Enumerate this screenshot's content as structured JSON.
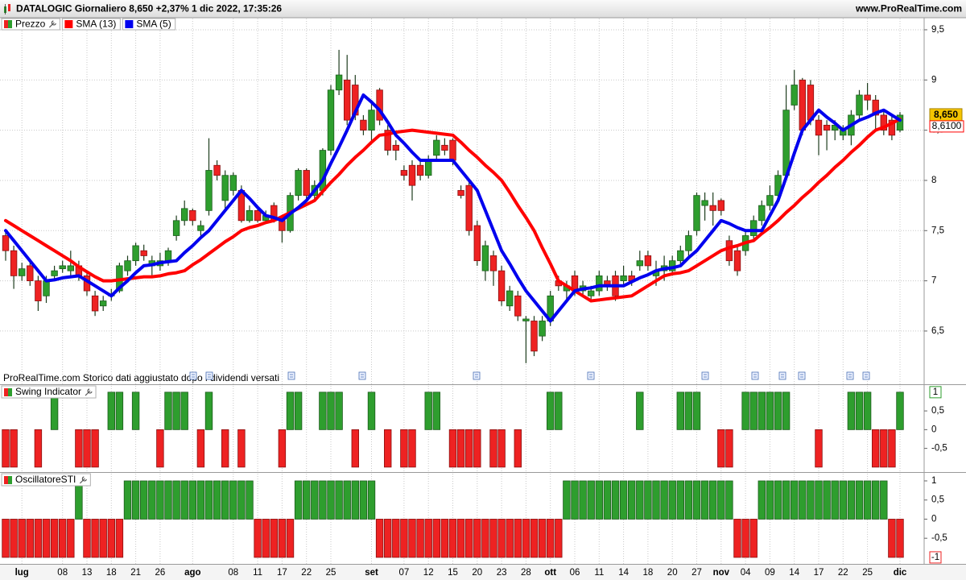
{
  "chart_data": [
    {
      "type": "candlestick",
      "title": "DATALOGIC Giornaliero 8,650 +2,37% 1 dic 2022, 17:35:26",
      "source": "www.ProRealTime.com",
      "note": "ProRealTime.com  Storico dati aggiustato dopo i dividendi versati",
      "categories": [
        null,
        null,
        "lug",
        null,
        null,
        null,
        null,
        "08",
        null,
        null,
        "13",
        null,
        null,
        "18",
        null,
        null,
        "21",
        null,
        null,
        "26",
        null,
        null,
        null,
        "ago",
        null,
        null,
        null,
        null,
        "08",
        null,
        null,
        "11",
        null,
        null,
        "17",
        null,
        null,
        "22",
        null,
        null,
        "25",
        null,
        null,
        null,
        null,
        "set",
        null,
        null,
        null,
        "07",
        null,
        null,
        "12",
        null,
        null,
        "15",
        null,
        null,
        "20",
        null,
        null,
        "23",
        null,
        null,
        "28",
        null,
        null,
        "ott",
        null,
        null,
        "06",
        null,
        null,
        "11",
        null,
        null,
        "14",
        null,
        null,
        "18",
        null,
        null,
        "20",
        null,
        null,
        "27",
        null,
        null,
        "nov",
        null,
        null,
        "04",
        null,
        null,
        "09",
        null,
        null,
        "14",
        null,
        null,
        "17",
        null,
        null,
        "22",
        null,
        null,
        "25",
        null,
        null,
        null,
        "dic"
      ],
      "ylim": [
        5.97,
        9.62
      ],
      "yticks": [
        {
          "value": 6.5,
          "label": "6,5"
        },
        7,
        {
          "value": 7.5,
          "label": "7,5"
        },
        8,
        {
          "value": 8.5,
          "label": "8,5"
        },
        9,
        {
          "value": 9.5,
          "label": "9,5"
        }
      ],
      "grid": true,
      "series": [
        {
          "name": "Prezzo",
          "up_color": "#2e9e2e",
          "down_color": "#ee2222",
          "last_label": "8,650",
          "open": [
            7.45,
            7.3,
            7.05,
            7.15,
            7.0,
            6.85,
            7.05,
            7.12,
            7.1,
            7.15,
            7.05,
            6.85,
            6.75,
            6.85,
            6.9,
            7.1,
            7.2,
            7.3,
            7.15,
            7.15,
            7.2,
            7.45,
            7.6,
            7.7,
            7.5,
            7.7,
            8.15,
            7.8,
            7.9,
            7.9,
            7.6,
            7.7,
            7.6,
            7.75,
            7.6,
            7.5,
            7.85,
            8.1,
            7.85,
            7.9,
            8.3,
            8.9,
            9.0,
            8.95,
            8.6,
            8.5,
            8.9,
            8.5,
            8.35,
            8.1,
            8.15,
            8.15,
            8.05,
            8.25,
            8.35,
            8.4,
            7.9,
            7.95,
            7.55,
            7.1,
            7.25,
            7.1,
            6.75,
            6.85,
            6.6,
            6.6,
            6.45,
            6.6,
            7.0,
            6.9,
            7.05,
            6.9,
            6.85,
            6.9,
            7.0,
            7.05,
            7.0,
            7.05,
            7.15,
            7.25,
            7.05,
            7.1,
            7.1,
            7.2,
            7.3,
            7.5,
            7.75,
            7.75,
            7.8,
            7.4,
            7.3,
            7.3,
            7.45,
            7.6,
            7.75,
            7.85,
            8.05,
            8.75,
            9.0,
            8.95,
            8.6,
            8.55,
            8.5,
            8.45,
            8.45,
            8.65,
            8.85,
            8.8,
            8.65,
            8.6,
            8.5
          ],
          "high": [
            7.5,
            7.35,
            7.18,
            7.2,
            7.05,
            7.05,
            7.15,
            7.2,
            7.3,
            7.2,
            7.1,
            6.9,
            6.85,
            6.92,
            7.18,
            7.25,
            7.38,
            7.36,
            7.25,
            7.28,
            7.33,
            7.65,
            7.8,
            7.72,
            7.6,
            8.42,
            8.2,
            8.1,
            8.08,
            7.95,
            7.75,
            7.72,
            7.7,
            7.78,
            7.65,
            7.88,
            8.12,
            8.12,
            8.0,
            8.32,
            8.95,
            9.3,
            9.25,
            9.05,
            8.65,
            8.8,
            8.92,
            8.55,
            8.4,
            8.15,
            8.2,
            8.2,
            8.25,
            8.45,
            8.42,
            8.42,
            7.95,
            8.0,
            7.6,
            7.4,
            7.3,
            7.15,
            6.95,
            6.9,
            6.65,
            6.65,
            6.65,
            6.9,
            7.05,
            7.0,
            7.1,
            7.0,
            6.95,
            7.1,
            7.05,
            7.1,
            7.15,
            7.1,
            7.3,
            7.3,
            7.2,
            7.25,
            7.25,
            7.35,
            7.5,
            7.88,
            7.88,
            7.88,
            7.82,
            7.45,
            7.35,
            7.5,
            7.65,
            7.8,
            7.95,
            8.1,
            8.95,
            9.1,
            9.02,
            9.0,
            8.65,
            8.6,
            8.6,
            8.55,
            8.7,
            8.9,
            8.97,
            8.85,
            8.7,
            8.65,
            8.68
          ],
          "low": [
            7.2,
            6.92,
            7.0,
            6.95,
            6.7,
            6.78,
            7.0,
            7.08,
            7.05,
            7.0,
            6.85,
            6.65,
            6.7,
            6.8,
            6.88,
            7.05,
            7.15,
            7.2,
            7.05,
            7.1,
            7.15,
            7.4,
            7.55,
            7.55,
            7.45,
            7.65,
            8.0,
            7.7,
            7.85,
            7.58,
            7.58,
            7.58,
            7.57,
            7.58,
            7.38,
            7.48,
            7.8,
            7.82,
            7.8,
            7.85,
            8.25,
            8.85,
            8.55,
            8.6,
            8.45,
            8.38,
            8.55,
            8.25,
            8.2,
            8.0,
            7.8,
            8.0,
            8.02,
            8.2,
            8.25,
            8.15,
            7.82,
            7.45,
            7.15,
            7.0,
            6.95,
            6.75,
            6.7,
            6.6,
            6.18,
            6.25,
            6.4,
            6.55,
            6.9,
            6.8,
            6.85,
            6.85,
            6.8,
            6.85,
            6.9,
            6.8,
            6.95,
            6.95,
            7.1,
            7.1,
            6.95,
            7.0,
            7.05,
            7.15,
            7.25,
            7.45,
            7.6,
            7.55,
            7.65,
            7.15,
            7.05,
            7.25,
            7.4,
            7.55,
            7.7,
            7.8,
            8.0,
            8.7,
            8.45,
            8.55,
            8.25,
            8.3,
            8.4,
            8.4,
            8.35,
            8.6,
            8.7,
            8.5,
            8.45,
            8.4,
            8.48
          ],
          "close": [
            7.3,
            7.05,
            7.12,
            7.0,
            6.8,
            7.0,
            7.1,
            7.15,
            7.15,
            7.05,
            6.9,
            6.7,
            6.8,
            6.87,
            7.15,
            7.2,
            7.35,
            7.25,
            7.2,
            7.2,
            7.3,
            7.6,
            7.72,
            7.6,
            7.55,
            8.1,
            8.05,
            8.05,
            8.05,
            7.6,
            7.7,
            7.6,
            7.65,
            7.6,
            7.5,
            7.85,
            8.1,
            7.85,
            7.95,
            8.3,
            8.9,
            9.05,
            8.6,
            8.65,
            8.5,
            8.7,
            8.6,
            8.3,
            8.3,
            8.05,
            7.95,
            8.05,
            8.2,
            8.4,
            8.3,
            8.2,
            7.85,
            7.5,
            7.2,
            7.35,
            7.1,
            6.8,
            6.9,
            6.65,
            6.62,
            6.3,
            6.6,
            6.85,
            6.95,
            6.95,
            6.9,
            6.95,
            6.9,
            7.05,
            6.95,
            6.85,
            7.05,
            7.0,
            7.2,
            7.15,
            7.1,
            7.15,
            7.2,
            7.3,
            7.45,
            7.85,
            7.8,
            7.7,
            7.7,
            7.2,
            7.1,
            7.45,
            7.6,
            7.75,
            7.85,
            8.05,
            8.7,
            8.95,
            8.5,
            8.6,
            8.45,
            8.5,
            8.55,
            8.5,
            8.65,
            8.85,
            8.8,
            8.65,
            8.5,
            8.45,
            8.65
          ]
        },
        {
          "name": "SMA (13)",
          "color": "#ff0000",
          "last_label": "8,6100",
          "values": [
            7.6,
            7.55,
            7.5,
            7.45,
            7.4,
            7.35,
            7.3,
            7.25,
            7.2,
            7.14,
            7.09,
            7.04,
            7.0,
            7.0,
            7.01,
            7.02,
            7.03,
            7.04,
            7.04,
            7.05,
            7.07,
            7.08,
            7.1,
            7.16,
            7.21,
            7.27,
            7.33,
            7.39,
            7.44,
            7.5,
            7.53,
            7.55,
            7.58,
            7.6,
            7.64,
            7.68,
            7.72,
            7.76,
            7.8,
            7.89,
            7.98,
            8.06,
            8.15,
            8.23,
            8.3,
            8.38,
            8.45,
            8.46,
            8.48,
            8.49,
            8.5,
            8.49,
            8.48,
            8.47,
            8.46,
            8.45,
            8.38,
            8.3,
            8.23,
            8.15,
            8.08,
            8.0,
            7.88,
            7.75,
            7.63,
            7.5,
            7.33,
            7.17,
            7.0,
            6.95,
            6.9,
            6.85,
            6.8,
            6.81,
            6.82,
            6.83,
            6.84,
            6.85,
            6.9,
            6.95,
            7.0,
            7.05,
            7.07,
            7.08,
            7.1,
            7.15,
            7.2,
            7.25,
            7.3,
            7.33,
            7.35,
            7.38,
            7.4,
            7.47,
            7.53,
            7.6,
            7.68,
            7.75,
            7.83,
            7.9,
            7.98,
            8.05,
            8.13,
            8.2,
            8.28,
            8.35,
            8.43,
            8.5,
            8.53,
            8.57,
            8.61
          ]
        },
        {
          "name": "SMA (5)",
          "color": "#0000ee",
          "values": [
            7.5,
            7.4,
            7.3,
            7.2,
            7.1,
            7.0,
            7.01,
            7.03,
            7.04,
            7.05,
            7.0,
            6.95,
            6.9,
            6.85,
            6.93,
            7.0,
            7.08,
            7.15,
            7.16,
            7.18,
            7.19,
            7.2,
            7.28,
            7.35,
            7.43,
            7.5,
            7.6,
            7.7,
            7.8,
            7.9,
            7.82,
            7.73,
            7.65,
            7.63,
            7.6,
            7.67,
            7.73,
            7.8,
            7.9,
            8.0,
            8.17,
            8.33,
            8.5,
            8.68,
            8.85,
            8.78,
            8.7,
            8.58,
            8.45,
            8.37,
            8.28,
            8.2,
            8.2,
            8.2,
            8.2,
            8.2,
            8.1,
            8.0,
            7.9,
            7.7,
            7.5,
            7.3,
            7.17,
            7.03,
            6.9,
            6.8,
            6.7,
            6.6,
            6.7,
            6.8,
            6.9,
            6.92,
            6.93,
            6.95,
            6.95,
            6.95,
            6.95,
            6.99,
            7.03,
            7.06,
            7.1,
            7.12,
            7.13,
            7.15,
            7.23,
            7.3,
            7.4,
            7.5,
            7.6,
            7.57,
            7.53,
            7.5,
            7.5,
            7.5,
            7.65,
            7.8,
            8.03,
            8.27,
            8.5,
            8.6,
            8.7,
            8.63,
            8.57,
            8.5,
            8.55,
            8.6,
            8.63,
            8.67,
            8.7,
            8.65,
            8.6
          ]
        }
      ]
    },
    {
      "type": "bar",
      "title": "Swing Indicator",
      "up_color": "#2e9e2e",
      "down_color": "#ee2222",
      "ylim": [
        -1.11,
        1.19
      ],
      "yticks": [
        {
          "value": -0.5,
          "label": "-0,5"
        },
        0,
        {
          "value": 0.5,
          "label": "0,5"
        }
      ],
      "values": [
        -1,
        -1,
        0,
        0,
        -1,
        0,
        1,
        0,
        0,
        -1,
        -1,
        -1,
        0,
        1,
        1,
        0,
        1,
        0,
        0,
        -1,
        1,
        1,
        1,
        0,
        -1,
        1,
        0,
        -1,
        0,
        -1,
        0,
        0,
        0,
        0,
        -1,
        1,
        1,
        0,
        0,
        1,
        1,
        1,
        0,
        -1,
        0,
        1,
        0,
        -1,
        0,
        -1,
        -1,
        0,
        1,
        1,
        0,
        -1,
        -1,
        -1,
        -1,
        0,
        -1,
        -1,
        0,
        -1,
        0,
        0,
        0,
        1,
        1,
        0,
        0,
        0,
        0,
        0,
        0,
        0,
        0,
        0,
        1,
        0,
        0,
        0,
        0,
        1,
        1,
        1,
        0,
        0,
        -1,
        -1,
        0,
        1,
        1,
        1,
        1,
        1,
        1,
        0,
        0,
        0,
        -1,
        0,
        0,
        0,
        1,
        1,
        1,
        -1,
        -1,
        -1,
        1
      ]
    },
    {
      "type": "bar",
      "title": "OscillatoreSTI",
      "up_color": "#2e9e2e",
      "down_color": "#ee2222",
      "ylim": [
        -1.17,
        1.21
      ],
      "yticks": [
        {
          "value": -0.5,
          "label": "-0,5"
        },
        0,
        {
          "value": 0.5,
          "label": "0,5"
        },
        1
      ],
      "values": [
        -1,
        -1,
        -1,
        -1,
        -1,
        -1,
        -1,
        -1,
        -1,
        1,
        -1,
        -1,
        -1,
        -1,
        -1,
        1,
        1,
        1,
        1,
        1,
        1,
        1,
        1,
        1,
        1,
        1,
        1,
        1,
        1,
        1,
        1,
        -1,
        -1,
        -1,
        -1,
        -1,
        1,
        1,
        1,
        1,
        1,
        1,
        1,
        1,
        1,
        1,
        -1,
        -1,
        -1,
        -1,
        -1,
        -1,
        -1,
        -1,
        -1,
        -1,
        -1,
        -1,
        -1,
        -1,
        -1,
        -1,
        -1,
        -1,
        -1,
        -1,
        -1,
        -1,
        -1,
        1,
        1,
        1,
        1,
        1,
        1,
        1,
        1,
        1,
        1,
        1,
        1,
        1,
        1,
        1,
        1,
        1,
        1,
        1,
        1,
        1,
        -1,
        -1,
        -1,
        1,
        1,
        1,
        1,
        1,
        1,
        1,
        1,
        1,
        1,
        1,
        1,
        1,
        1,
        1,
        1,
        -1,
        -1
      ]
    }
  ]
}
